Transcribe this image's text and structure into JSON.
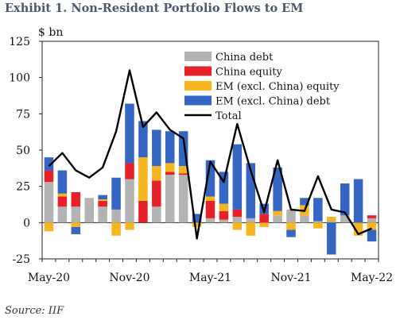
{
  "header": {
    "title": "Exhibit 1. Non-Resident Portfolio Flows to EM"
  },
  "footer": {
    "source": "Source: IIF"
  },
  "colors": {
    "china_debt": "#b3b3b3",
    "china_equity": "#e8202a",
    "em_equity": "#f7b520",
    "em_debt": "#3566c4",
    "total": "#000000"
  },
  "chart_data": {
    "type": "bar",
    "stacked": true,
    "unit_label": "$ bn",
    "ylim": [
      -25,
      125
    ],
    "yticks": [
      125,
      100,
      75,
      50,
      25,
      0,
      -25
    ],
    "xtick_labels": [
      {
        "label": "May-20",
        "index": 0
      },
      {
        "label": "Nov-20",
        "index": 6
      },
      {
        "label": "May-21",
        "index": 12
      },
      {
        "label": "Nov-21",
        "index": 18
      },
      {
        "label": "May-22",
        "index": 24
      }
    ],
    "n_periods": 25,
    "series": [
      {
        "name": "China debt",
        "color_key": "china_debt",
        "values": [
          28,
          11,
          11,
          17,
          11,
          9,
          30,
          0,
          11,
          33,
          33,
          0,
          3,
          2,
          4,
          3,
          0,
          5,
          9,
          5,
          1,
          1,
          5,
          0,
          3
        ]
      },
      {
        "name": "China equity",
        "color_key": "china_equity",
        "values": [
          8,
          7,
          10,
          0,
          4,
          0,
          11,
          15,
          18,
          2,
          1,
          0,
          12,
          6,
          5,
          0,
          6,
          0,
          0,
          0,
          0,
          0,
          0,
          0,
          2
        ]
      },
      {
        "name": "EM (excl. China) equity",
        "color_key": "em_equity",
        "values": [
          -6,
          2,
          -3,
          0,
          1,
          -9,
          -5,
          30,
          10,
          6,
          5,
          -3,
          3,
          5,
          -5,
          -9,
          -3,
          3,
          -5,
          7,
          -4,
          3,
          0,
          -9,
          -5
        ]
      },
      {
        "name": "EM (excl. China) debt",
        "color_key": "em_debt",
        "values": [
          9,
          16,
          -5,
          0,
          3,
          22,
          41,
          25,
          25,
          22,
          24,
          6,
          25,
          22,
          45,
          38,
          7,
          30,
          -5,
          5,
          16,
          -22,
          22,
          30,
          -8
        ]
      },
      {
        "name": "Total",
        "color_key": "total",
        "render": "line",
        "values": [
          39,
          48,
          36,
          31,
          38,
          63,
          105,
          66,
          76,
          64,
          58,
          -11,
          42,
          28,
          68,
          36,
          7,
          43,
          9,
          8,
          32,
          9,
          7,
          -8,
          -4
        ]
      }
    ],
    "legend": [
      "China debt",
      "China equity",
      "EM (excl. China) equity",
      "EM (excl. China) debt",
      "Total"
    ],
    "legend_position": "top-right",
    "grid": false
  }
}
